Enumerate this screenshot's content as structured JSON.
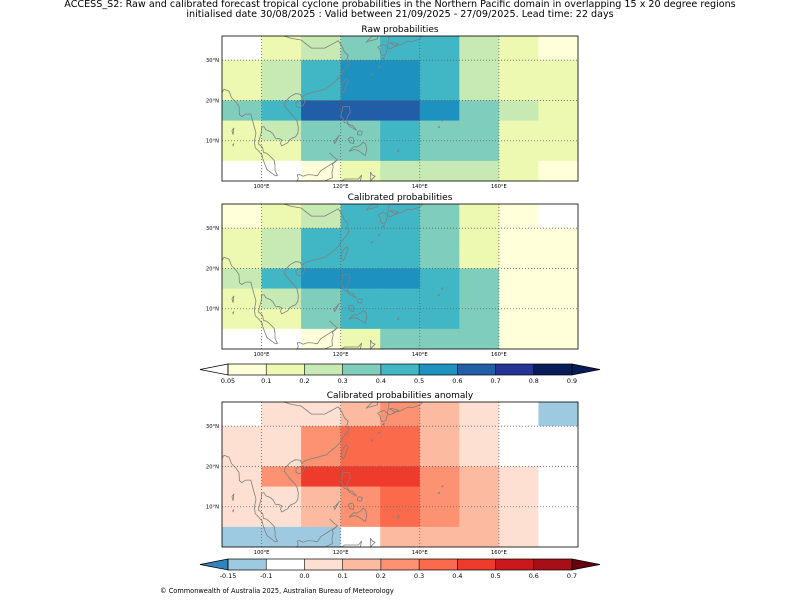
{
  "header": {
    "title_line1": "ACCESS_S2: Raw and calibrated forecast tropical cyclone probabilities in the Northern Pacific domain in overlapping 15 x 20 degree regions",
    "title_line2": "initialised date 30/08/2025 :  Valid between 21/09/2025 - 27/09/2025. Lead time: 22 days"
  },
  "footer": {
    "copyright": "© Commonwealth of Australia 2025, Australian Bureau of Meteorology"
  },
  "chart_data": [
    {
      "type": "heatmap",
      "title": "Raw probabilities",
      "x": [
        92.5,
        102.5,
        112.5,
        122.5,
        132.5,
        142.5,
        152.5,
        162.5,
        172.5
      ],
      "y": [
        32.5,
        27.5,
        22.5,
        17.5,
        12.5,
        7.5,
        2.5
      ],
      "xticks": [
        "100°E",
        "120°E",
        "140°E",
        "160°E"
      ],
      "yticks": [
        "30°N",
        "20°N",
        "10°N"
      ],
      "values": [
        [
          0.0,
          0.15,
          0.25,
          0.35,
          0.45,
          0.45,
          0.25,
          0.15,
          0.05
        ],
        [
          0.15,
          0.25,
          0.4,
          0.5,
          0.5,
          0.4,
          0.25,
          0.15,
          0.15
        ],
        [
          0.15,
          0.25,
          0.4,
          0.5,
          0.5,
          0.4,
          0.25,
          0.15,
          0.15
        ],
        [
          0.35,
          0.4,
          0.6,
          0.6,
          0.6,
          0.5,
          0.35,
          0.25,
          0.15
        ],
        [
          0.15,
          0.25,
          0.35,
          0.35,
          0.4,
          0.35,
          0.35,
          0.15,
          0.15
        ],
        [
          0.15,
          0.15,
          0.35,
          0.35,
          0.4,
          0.35,
          0.35,
          0.15,
          0.15
        ],
        [
          0.0,
          0.0,
          0.05,
          0.15,
          0.25,
          0.25,
          0.25,
          0.15,
          0.05
        ]
      ]
    },
    {
      "type": "heatmap",
      "title": "Calibrated probabilities",
      "x": [
        92.5,
        102.5,
        112.5,
        122.5,
        132.5,
        142.5,
        152.5,
        162.5,
        172.5
      ],
      "y": [
        32.5,
        27.5,
        22.5,
        17.5,
        12.5,
        7.5,
        2.5
      ],
      "xticks": [
        "100°E",
        "120°E",
        "140°E",
        "160°E"
      ],
      "yticks": [
        "30°N",
        "20°N",
        "10°N"
      ],
      "values": [
        [
          0.05,
          0.15,
          0.25,
          0.4,
          0.45,
          0.35,
          0.15,
          0.05,
          0.0
        ],
        [
          0.15,
          0.25,
          0.4,
          0.45,
          0.45,
          0.35,
          0.15,
          0.05,
          0.05
        ],
        [
          0.15,
          0.25,
          0.4,
          0.45,
          0.45,
          0.35,
          0.15,
          0.05,
          0.05
        ],
        [
          0.25,
          0.45,
          0.55,
          0.55,
          0.55,
          0.45,
          0.35,
          0.05,
          0.05
        ],
        [
          0.15,
          0.25,
          0.35,
          0.4,
          0.45,
          0.4,
          0.35,
          0.05,
          0.05
        ],
        [
          0.15,
          0.15,
          0.35,
          0.4,
          0.45,
          0.4,
          0.35,
          0.05,
          0.05
        ],
        [
          0.0,
          0.0,
          0.05,
          0.15,
          0.35,
          0.35,
          0.35,
          0.05,
          0.05
        ]
      ]
    },
    {
      "type": "heatmap",
      "title": "Calibrated probabilities anomaly",
      "x": [
        92.5,
        102.5,
        112.5,
        122.5,
        132.5,
        142.5,
        152.5,
        162.5,
        172.5
      ],
      "y": [
        32.5,
        27.5,
        22.5,
        17.5,
        12.5,
        7.5,
        2.5
      ],
      "xticks": [
        "100°E",
        "120°E",
        "140°E",
        "160°E"
      ],
      "yticks": [
        "30°N",
        "20°N",
        "10°N"
      ],
      "values": [
        [
          -0.1,
          0.0,
          0.05,
          0.15,
          0.25,
          0.15,
          0.0,
          -0.1,
          -0.15
        ],
        [
          0.0,
          0.05,
          0.25,
          0.35,
          0.35,
          0.15,
          0.0,
          -0.1,
          -0.1
        ],
        [
          0.0,
          0.05,
          0.25,
          0.35,
          0.35,
          0.15,
          0.0,
          -0.1,
          -0.1
        ],
        [
          0.05,
          0.25,
          0.45,
          0.45,
          0.45,
          0.25,
          0.15,
          0.0,
          -0.1
        ],
        [
          0.0,
          0.05,
          0.15,
          0.25,
          0.35,
          0.25,
          0.15,
          0.0,
          -0.1
        ],
        [
          0.0,
          0.0,
          0.15,
          0.25,
          0.35,
          0.25,
          0.15,
          0.0,
          -0.1
        ],
        [
          -0.15,
          -0.15,
          -0.15,
          -0.1,
          0.15,
          0.15,
          0.15,
          0.0,
          -0.1
        ]
      ]
    }
  ],
  "colorbars": [
    {
      "ticks": [
        "0.05",
        "0.1",
        "0.2",
        "0.3",
        "0.4",
        "0.5",
        "0.6",
        "0.7",
        "0.8",
        "0.9"
      ],
      "colors": [
        "#ffffd9",
        "#edf8b1",
        "#c7e9b4",
        "#7fcdbb",
        "#41b6c4",
        "#1d91c0",
        "#225ea8",
        "#253494",
        "#081d58"
      ],
      "under": "#ffffff",
      "over": "#081d58"
    },
    {
      "ticks": [
        "-0.15",
        "-0.1",
        "0.0",
        "0.1",
        "0.2",
        "0.3",
        "0.4",
        "0.5",
        "0.6",
        "0.7"
      ],
      "colors": [
        "#9ecae1",
        "#ffffff",
        "#fee0d2",
        "#fcbba1",
        "#fc9272",
        "#fb6a4a",
        "#ef3b2c",
        "#cb181d",
        "#a50f15"
      ],
      "under": "#3182bd",
      "over": "#67000d"
    }
  ]
}
